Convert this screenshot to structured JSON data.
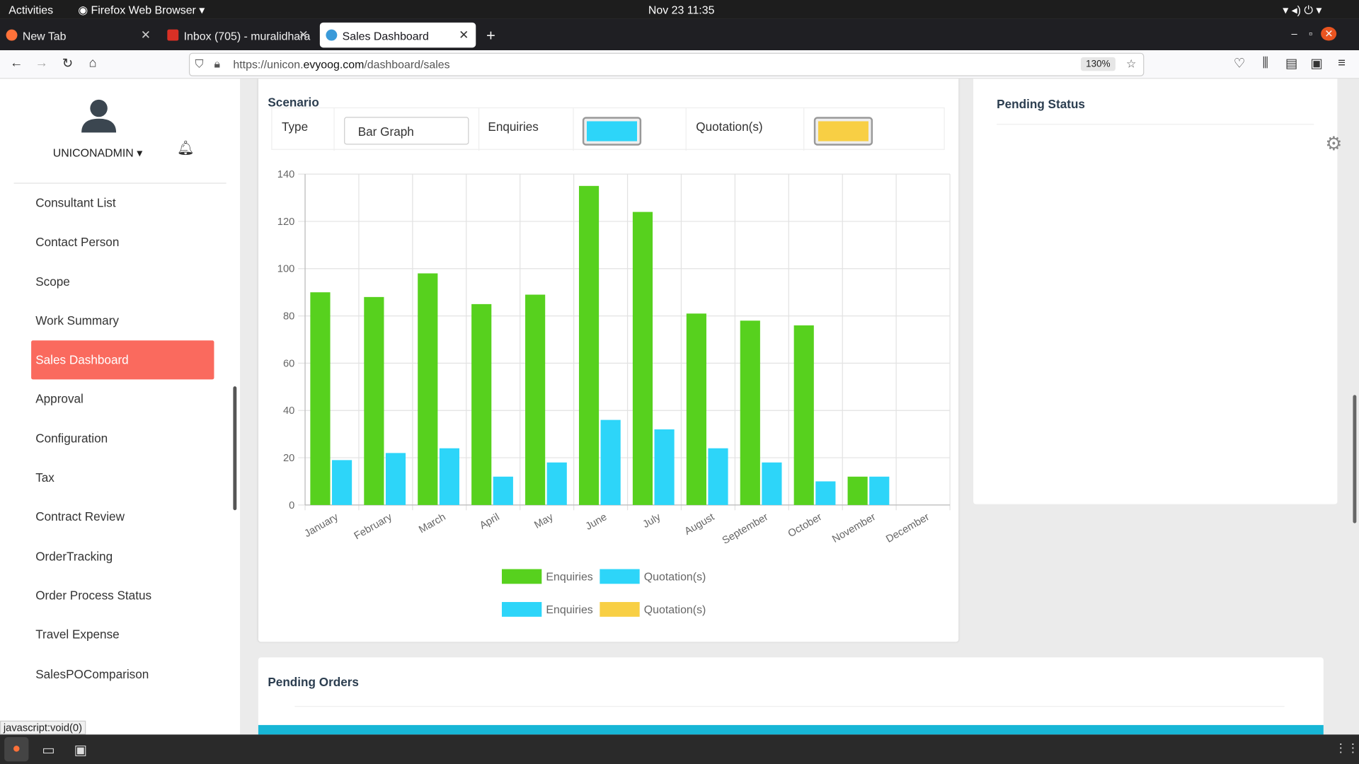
{
  "topbar": {
    "activities": "Activities",
    "app": "Firefox Web Browser",
    "datetime": "Nov 23  11:35"
  },
  "tabs": [
    {
      "label": "New Tab"
    },
    {
      "label": "Inbox (705) - muralidhara"
    },
    {
      "label": "Sales Dashboard"
    }
  ],
  "browser": {
    "url_prefix": "https://unicon.",
    "url_domain": "evyoog.com",
    "url_path": "/dashboard/sales",
    "zoom": "130%"
  },
  "user": {
    "name": "UNICONADMIN"
  },
  "sidebar": {
    "items": [
      "Consultant List",
      "Contact Person",
      "Scope",
      "Work Summary",
      "Sales Dashboard",
      "Approval",
      "Configuration",
      "Tax",
      "Contract Review",
      "OrderTracking",
      "Order Process Status",
      "Travel Expense",
      "SalesPOComparison"
    ]
  },
  "scenario": {
    "title": "Scenario",
    "type_label": "Type",
    "type_value": "Bar Graph",
    "enq_label": "Enquiries",
    "quo_label": "Quotation(s)",
    "enq_color": "#2dd5f9",
    "quo_color": "#f8cf44"
  },
  "pending_status": {
    "title": "Pending Status"
  },
  "pending_orders": {
    "title": "Pending Orders"
  },
  "statusbar": "javascript:void(0)",
  "chart_data": {
    "type": "bar",
    "categories": [
      "January",
      "February",
      "March",
      "April",
      "May",
      "June",
      "July",
      "August",
      "September",
      "October",
      "November",
      "December"
    ],
    "series": [
      {
        "name": "Enquiries",
        "color": "#57d11e",
        "values": [
          90,
          88,
          98,
          85,
          89,
          135,
          124,
          81,
          78,
          76,
          12,
          0
        ]
      },
      {
        "name": "Quotation(s)",
        "color": "#2dd5f9",
        "values": [
          19,
          22,
          24,
          12,
          18,
          36,
          32,
          24,
          18,
          10,
          12,
          0
        ]
      }
    ],
    "legend2": [
      {
        "name": "Enquiries",
        "color": "#2dd5f9"
      },
      {
        "name": "Quotation(s)",
        "color": "#f8cf44"
      }
    ],
    "yticks": [
      0,
      20,
      40,
      60,
      80,
      100,
      120,
      140
    ],
    "ylim": [
      0,
      140
    ],
    "grid": true,
    "legend": "bottom"
  }
}
